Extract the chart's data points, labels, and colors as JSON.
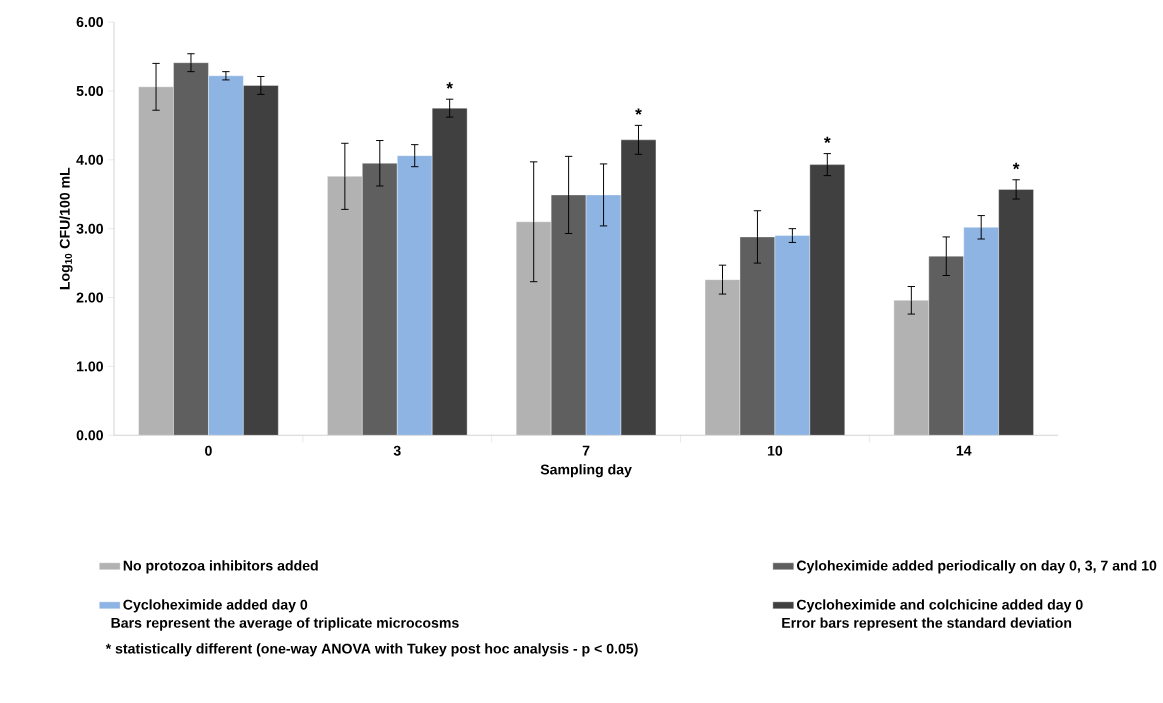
{
  "chart_data": {
    "type": "bar",
    "xlabel": "Sampling day",
    "ylabel": "Log$_{10}$ CFU/100 mL",
    "categories": [
      "0",
      "3",
      "7",
      "10",
      "14"
    ],
    "series": [
      {
        "name": "No protozoa inhibitors added",
        "color": "#b2b2b2",
        "values": [
          5.06,
          3.76,
          3.1,
          2.26,
          1.96
        ],
        "errors": [
          0.34,
          0.48,
          0.87,
          0.21,
          0.2
        ]
      },
      {
        "name": "Cyloheximide added periodically on day 0, 3, 7 and 10",
        "color": "#5f5f5f",
        "values": [
          5.41,
          3.95,
          3.49,
          2.88,
          2.6
        ],
        "errors": [
          0.13,
          0.33,
          0.56,
          0.38,
          0.28
        ]
      },
      {
        "name": "Cycloheximide added day 0",
        "color": "#8eb4e3",
        "values": [
          5.22,
          4.06,
          3.49,
          2.9,
          3.02
        ],
        "errors": [
          0.06,
          0.16,
          0.45,
          0.1,
          0.17
        ]
      },
      {
        "name": "Cycloheximide and colchicine added day 0",
        "color": "#404040",
        "values": [
          5.08,
          4.75,
          4.29,
          3.93,
          3.57
        ],
        "errors": [
          0.13,
          0.13,
          0.21,
          0.16,
          0.14
        ],
        "value_labels": [
          null,
          "*",
          "*",
          "*",
          "*"
        ]
      }
    ],
    "ylim": [
      0,
      6
    ],
    "yticks": [
      {
        "value": 0,
        "label": "0.00"
      },
      {
        "value": 1,
        "label": "1.00"
      },
      {
        "value": 2,
        "label": "2.00"
      },
      {
        "value": 3,
        "label": "3.00"
      },
      {
        "value": 4,
        "label": "4.00"
      },
      {
        "value": 5,
        "label": "5.00"
      },
      {
        "value": 6,
        "label": "6.00"
      }
    ],
    "grid": false,
    "legend": "bottom",
    "annotations": [
      "Bars represent the average of triplicate microcosms",
      "Error bars represent the standard deviation",
      "* statistically different (one-way ANOVA with Tukey post hoc analysis - p < 0.05)"
    ]
  }
}
